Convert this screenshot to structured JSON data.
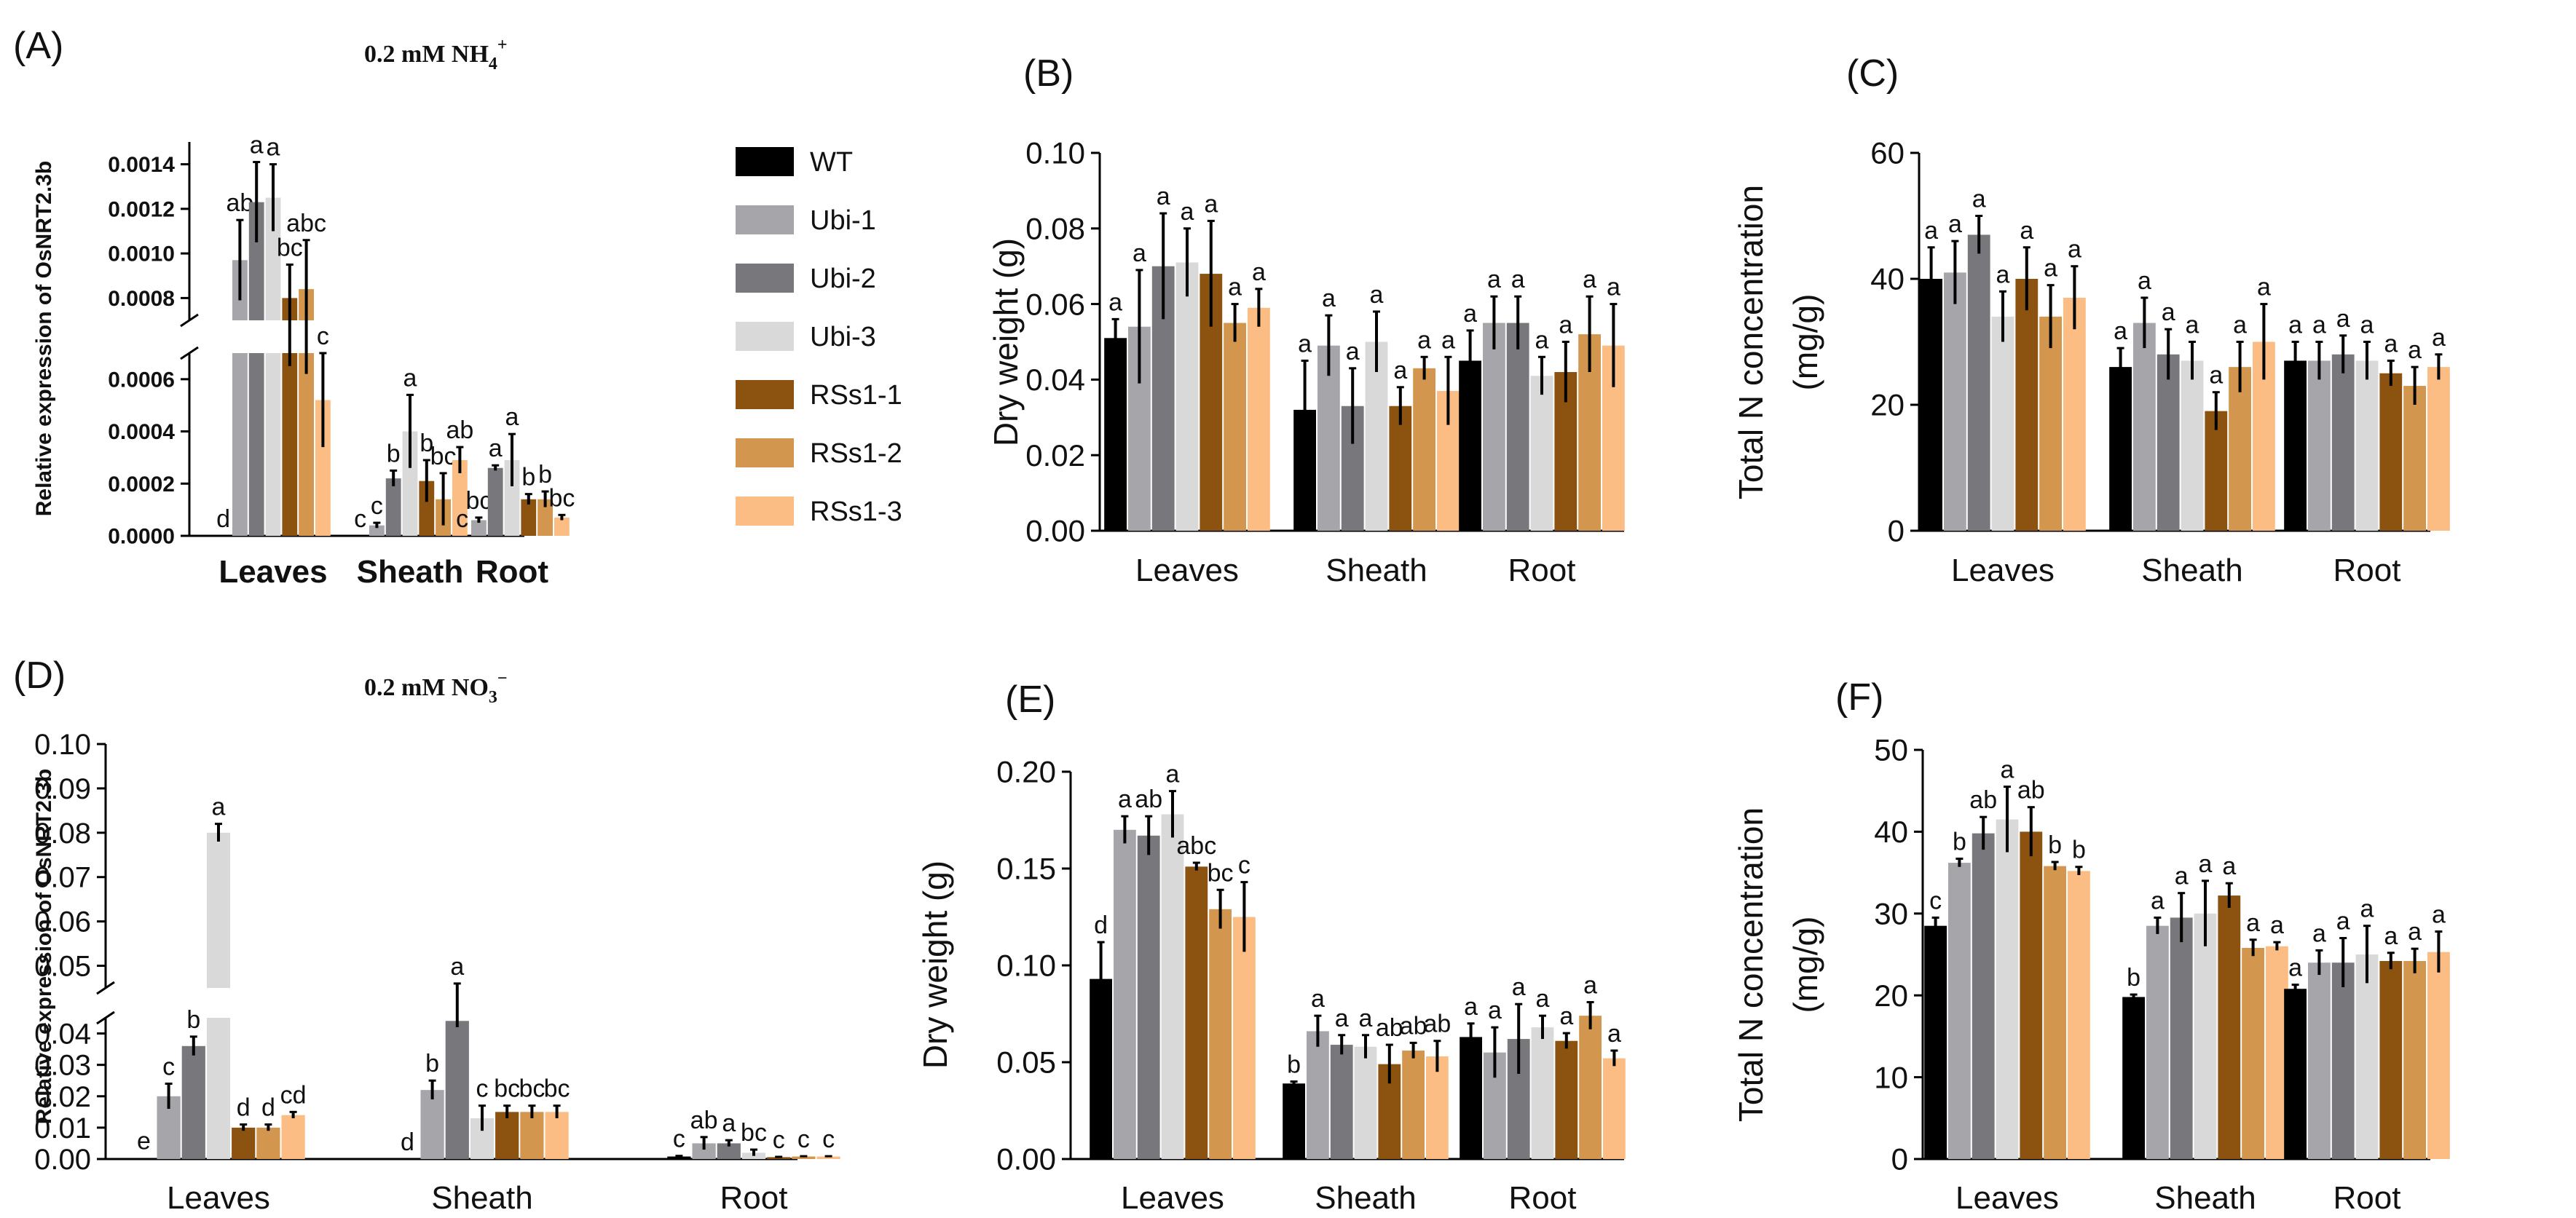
{
  "groups": [
    "Leaves",
    "Sheath",
    "Root"
  ],
  "legend": {
    "entries": [
      "WT",
      "Ubi-1",
      "Ubi-2",
      "Ubi-3",
      "RSs1-1",
      "RSs1-2",
      "RSs1-3"
    ],
    "colors": [
      "#000000",
      "#a6a6aa",
      "#78787c",
      "#d9d9d9",
      "#8c5210",
      "#d2964e",
      "#fbbd84"
    ]
  },
  "chart_data": [
    {
      "panel": "(A)",
      "type": "bar",
      "title_main": "0.2 mM NH",
      "title_sub": "4",
      "title_sup": "+",
      "ylabel": "Relative expression of OsNRT2.3b",
      "xlabel": "",
      "broken_axis": true,
      "lower": {
        "ylim": [
          0,
          0.0007
        ],
        "ticks": [
          "0.0000",
          "0.0002",
          "0.0004",
          "0.0006"
        ]
      },
      "upper": {
        "ylim": [
          0.0007,
          0.0015
        ],
        "ticks": [
          "0.0008",
          "0.0010",
          "0.0012",
          "0.0014"
        ]
      },
      "categories": [
        "Leaves",
        "Sheath",
        "Root"
      ],
      "series": [
        {
          "name": "WT",
          "values": [
            0,
            0,
            0
          ],
          "errors": [
            0,
            0,
            0
          ],
          "letters": [
            "d",
            "c",
            "c"
          ]
        },
        {
          "name": "Ubi-1",
          "values": [
            0.00097,
            4e-05,
            6e-05
          ],
          "errors": [
            0.00018,
            1e-05,
            1e-05
          ],
          "letters": [
            "ab",
            "c",
            "bc"
          ]
        },
        {
          "name": "Ubi-2",
          "values": [
            0.00123,
            0.00022,
            0.00026
          ],
          "errors": [
            0.00018,
            3e-05,
            1e-05
          ],
          "letters": [
            "a",
            "b",
            "a"
          ]
        },
        {
          "name": "Ubi-3",
          "values": [
            0.00125,
            0.0004,
            0.00029
          ],
          "errors": [
            0.00015,
            0.00014,
            0.0001
          ],
          "letters": [
            "a",
            "a",
            "a"
          ]
        },
        {
          "name": "RSs1-1",
          "values": [
            0.0008,
            0.00021,
            0.00014
          ],
          "errors": [
            0.00015,
            8e-05,
            2e-05
          ],
          "letters": [
            "bc",
            "b",
            "b"
          ]
        },
        {
          "name": "RSs1-2",
          "values": [
            0.00084,
            0.00014,
            0.00014
          ],
          "errors": [
            0.00022,
            0.0001,
            3e-05
          ],
          "letters": [
            "abc",
            "bc",
            "b"
          ]
        },
        {
          "name": "RSs1-3",
          "values": [
            0.00052,
            0.00029,
            7e-05
          ],
          "errors": [
            0.00018,
            5e-05,
            1e-05
          ],
          "letters": [
            "c",
            "ab",
            "bc"
          ]
        }
      ]
    },
    {
      "panel": "(B)",
      "type": "bar",
      "ylabel": "Dry weight (g)",
      "xlabel": "",
      "ylim": [
        0,
        0.1
      ],
      "ticks": [
        "0.00",
        "0.02",
        "0.04",
        "0.06",
        "0.08",
        "0.10"
      ],
      "categories": [
        "Leaves",
        "Sheath",
        "Root"
      ],
      "series": [
        {
          "name": "WT",
          "values": [
            0.051,
            0.032,
            0.045
          ],
          "errors": [
            0.005,
            0.013,
            0.008
          ],
          "letters": [
            "a",
            "a",
            "a"
          ]
        },
        {
          "name": "Ubi-1",
          "values": [
            0.054,
            0.049,
            0.055
          ],
          "errors": [
            0.015,
            0.008,
            0.007
          ],
          "letters": [
            "a",
            "a",
            "a"
          ]
        },
        {
          "name": "Ubi-2",
          "values": [
            0.07,
            0.033,
            0.055
          ],
          "errors": [
            0.014,
            0.01,
            0.007
          ],
          "letters": [
            "a",
            "a",
            "a"
          ]
        },
        {
          "name": "Ubi-3",
          "values": [
            0.071,
            0.05,
            0.041
          ],
          "errors": [
            0.009,
            0.008,
            0.005
          ],
          "letters": [
            "a",
            "a",
            "a"
          ]
        },
        {
          "name": "RSs1-1",
          "values": [
            0.068,
            0.033,
            0.042
          ],
          "errors": [
            0.014,
            0.005,
            0.008
          ],
          "letters": [
            "a",
            "a",
            "a"
          ]
        },
        {
          "name": "RSs1-2",
          "values": [
            0.055,
            0.043,
            0.052
          ],
          "errors": [
            0.005,
            0.003,
            0.01
          ],
          "letters": [
            "a",
            "a",
            "a"
          ]
        },
        {
          "name": "RSs1-3",
          "values": [
            0.059,
            0.037,
            0.049
          ],
          "errors": [
            0.005,
            0.009,
            0.011
          ],
          "letters": [
            "a",
            "a",
            "a"
          ]
        }
      ]
    },
    {
      "panel": "(C)",
      "type": "bar",
      "ylabel": "Total N concentration",
      "ylabel2": "(mg/g)",
      "xlabel": "",
      "ylim": [
        0,
        60
      ],
      "ticks": [
        "0",
        "20",
        "40",
        "60"
      ],
      "categories": [
        "Leaves",
        "Sheath",
        "Root"
      ],
      "series": [
        {
          "name": "WT",
          "values": [
            40,
            26,
            27
          ],
          "errors": [
            5,
            3,
            3
          ],
          "letters": [
            "a",
            "a",
            "a"
          ]
        },
        {
          "name": "Ubi-1",
          "values": [
            41,
            33,
            27
          ],
          "errors": [
            5,
            4,
            3
          ],
          "letters": [
            "a",
            "a",
            "a"
          ]
        },
        {
          "name": "Ubi-2",
          "values": [
            47,
            28,
            28
          ],
          "errors": [
            3,
            4,
            3
          ],
          "letters": [
            "a",
            "a",
            "a"
          ]
        },
        {
          "name": "Ubi-3",
          "values": [
            34,
            27,
            27
          ],
          "errors": [
            4,
            3,
            3
          ],
          "letters": [
            "a",
            "a",
            "a"
          ]
        },
        {
          "name": "RSs1-1",
          "values": [
            40,
            19,
            25
          ],
          "errors": [
            5,
            3,
            2
          ],
          "letters": [
            "a",
            "a",
            "a"
          ]
        },
        {
          "name": "RSs1-2",
          "values": [
            34,
            26,
            23
          ],
          "errors": [
            5,
            4,
            3
          ],
          "letters": [
            "a",
            "a",
            "a"
          ]
        },
        {
          "name": "RSs1-3",
          "values": [
            37,
            30,
            26
          ],
          "errors": [
            5,
            6,
            2
          ],
          "letters": [
            "a",
            "a",
            "a"
          ]
        }
      ]
    },
    {
      "panel": "(D)",
      "type": "bar",
      "title_main": "0.2 mM NO",
      "title_sub": "3",
      "title_sup": "−",
      "ylabel": "Relative expression of OsNRT2.3b",
      "xlabel": "",
      "broken_axis": true,
      "lower": {
        "ylim": [
          0,
          0.045
        ],
        "ticks": [
          "0.00",
          "0.01",
          "0.02",
          "0.03",
          "0.04"
        ]
      },
      "upper": {
        "ylim": [
          0.045,
          0.1
        ],
        "ticks": [
          "0.05",
          "0.06",
          "0.07",
          "0.08",
          "0.09",
          "0.10"
        ]
      },
      "categories": [
        "Leaves",
        "Sheath",
        "Root"
      ],
      "series": [
        {
          "name": "WT",
          "values": [
            0.0003,
            0,
            0.0008
          ],
          "errors": [
            0,
            0,
            0.0002
          ],
          "letters": [
            "e",
            "d",
            "c"
          ]
        },
        {
          "name": "Ubi-1",
          "values": [
            0.02,
            0.022,
            0.005
          ],
          "errors": [
            0.004,
            0.003,
            0.002
          ],
          "letters": [
            "c",
            "b",
            "ab"
          ]
        },
        {
          "name": "Ubi-2",
          "values": [
            0.036,
            0.044,
            0.005
          ],
          "errors": [
            0.003,
            0.002,
            0.001
          ],
          "letters": [
            "b",
            "a",
            "a"
          ]
        },
        {
          "name": "Ubi-3",
          "values": [
            0.08,
            0.013,
            0.002
          ],
          "errors": [
            0.002,
            0.004,
            0.001
          ],
          "letters": [
            "a",
            "c",
            "bc"
          ]
        },
        {
          "name": "RSs1-1",
          "values": [
            0.01,
            0.015,
            0.0006
          ],
          "errors": [
            0.001,
            0.002,
            0.0001
          ],
          "letters": [
            "d",
            "bc",
            "c"
          ]
        },
        {
          "name": "RSs1-2",
          "values": [
            0.01,
            0.015,
            0.0008
          ],
          "errors": [
            0.001,
            0.002,
            0.0001
          ],
          "letters": [
            "d",
            "bc",
            "c"
          ]
        },
        {
          "name": "RSs1-3",
          "values": [
            0.014,
            0.015,
            0.0008
          ],
          "errors": [
            0.001,
            0.002,
            0.0001
          ],
          "letters": [
            "cd",
            "bc",
            "c"
          ]
        }
      ]
    },
    {
      "panel": "(E)",
      "type": "bar",
      "ylabel": "Dry weight (g)",
      "xlabel": "",
      "ylim": [
        0,
        0.2
      ],
      "ticks": [
        "0.00",
        "0.05",
        "0.10",
        "0.15",
        "0.20"
      ],
      "categories": [
        "Leaves",
        "Sheath",
        "Root"
      ],
      "series": [
        {
          "name": "WT",
          "values": [
            0.093,
            0.039,
            0.063
          ],
          "errors": [
            0.019,
            0.001,
            0.007
          ],
          "letters": [
            "d",
            "b",
            "a"
          ]
        },
        {
          "name": "Ubi-1",
          "values": [
            0.17,
            0.066,
            0.055
          ],
          "errors": [
            0.007,
            0.008,
            0.013
          ],
          "letters": [
            "a",
            "a",
            "a"
          ]
        },
        {
          "name": "Ubi-2",
          "values": [
            0.167,
            0.059,
            0.062
          ],
          "errors": [
            0.01,
            0.005,
            0.018
          ],
          "letters": [
            "ab",
            "a",
            "a"
          ]
        },
        {
          "name": "Ubi-3",
          "values": [
            0.178,
            0.058,
            0.068
          ],
          "errors": [
            0.012,
            0.006,
            0.006
          ],
          "letters": [
            "a",
            "a",
            "a"
          ]
        },
        {
          "name": "RSs1-1",
          "values": [
            0.151,
            0.049,
            0.061
          ],
          "errors": [
            0.002,
            0.01,
            0.004
          ],
          "letters": [
            "abc",
            "ab",
            "a"
          ]
        },
        {
          "name": "RSs1-2",
          "values": [
            0.129,
            0.056,
            0.074
          ],
          "errors": [
            0.01,
            0.004,
            0.007
          ],
          "letters": [
            "bc",
            "ab",
            "a"
          ]
        },
        {
          "name": "RSs1-3",
          "values": [
            0.125,
            0.053,
            0.052
          ],
          "errors": [
            0.018,
            0.008,
            0.004
          ],
          "letters": [
            "c",
            "ab",
            "a"
          ]
        }
      ]
    },
    {
      "panel": "(F)",
      "type": "bar",
      "ylabel": "Total N concentration",
      "ylabel2": "(mg/g)",
      "xlabel": "",
      "ylim": [
        0,
        50
      ],
      "ticks": [
        "0",
        "10",
        "20",
        "30",
        "40",
        "50"
      ],
      "categories": [
        "Leaves",
        "Sheath",
        "Root"
      ],
      "series": [
        {
          "name": "WT",
          "values": [
            28.5,
            19.8,
            20.8
          ],
          "errors": [
            1,
            0.3,
            0.5
          ],
          "letters": [
            "c",
            "b",
            "a"
          ]
        },
        {
          "name": "Ubi-1",
          "values": [
            36.2,
            28.5,
            24.0
          ],
          "errors": [
            0.5,
            1,
            1.5
          ],
          "letters": [
            "b",
            "a",
            "a"
          ]
        },
        {
          "name": "Ubi-2",
          "values": [
            39.8,
            29.5,
            24.0
          ],
          "errors": [
            2,
            3,
            3
          ],
          "letters": [
            "ab",
            "a",
            "a"
          ]
        },
        {
          "name": "Ubi-3",
          "values": [
            41.5,
            30.0,
            25.0
          ],
          "errors": [
            4,
            4,
            3.5
          ],
          "letters": [
            "a",
            "a",
            "a"
          ]
        },
        {
          "name": "RSs1-1",
          "values": [
            40.0,
            32.2,
            24.2
          ],
          "errors": [
            3,
            1.5,
            1
          ],
          "letters": [
            "ab",
            "a",
            "a"
          ]
        },
        {
          "name": "RSs1-2",
          "values": [
            35.8,
            25.8,
            24.2
          ],
          "errors": [
            0.5,
            1,
            1.5
          ],
          "letters": [
            "b",
            "a",
            "a"
          ]
        },
        {
          "name": "RSs1-3",
          "values": [
            35.2,
            26.0,
            25.3
          ],
          "errors": [
            0.5,
            0.5,
            2.5
          ],
          "letters": [
            "b",
            "a",
            "a"
          ]
        }
      ]
    }
  ]
}
